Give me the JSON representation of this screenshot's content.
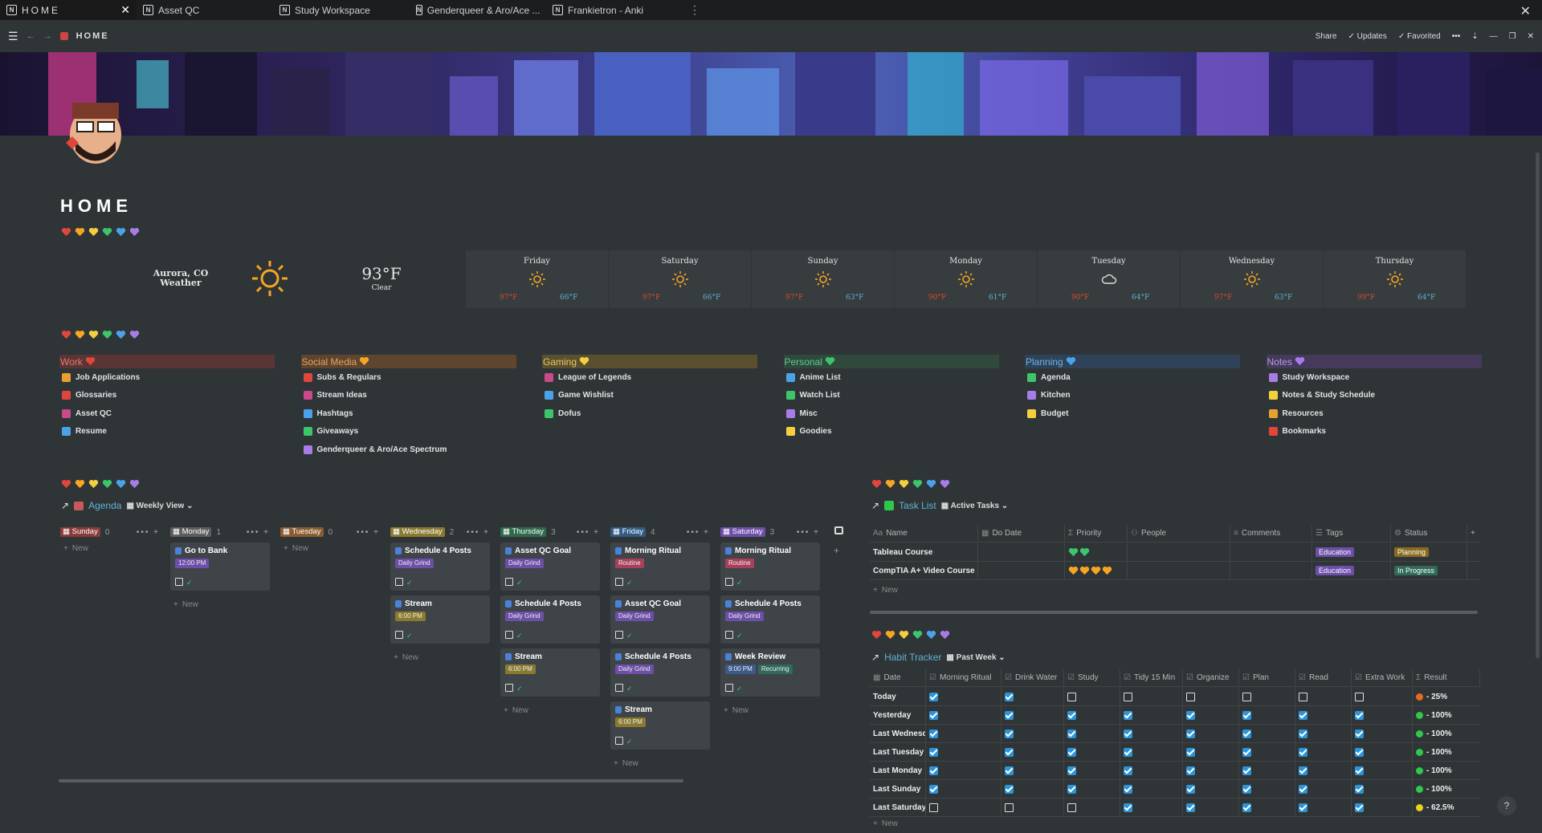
{
  "tabs": [
    {
      "label": "HOME",
      "active": true
    },
    {
      "label": "Asset QC"
    },
    {
      "label": "Study Workspace"
    },
    {
      "label": "Genderqueer & Aro/Ace ..."
    },
    {
      "label": "Frankietron - Anki"
    }
  ],
  "topbar": {
    "breadcrumb": "HOME",
    "share": "Share",
    "updates": "Updates",
    "favorited": "Favorited"
  },
  "page_title": "HOME",
  "weather": {
    "location": "Aurora, CO",
    "sub": "Weather",
    "temp": "93°F",
    "condition": "Clear",
    "days": [
      {
        "name": "Friday",
        "hi": "97°F",
        "lo": "66°F",
        "icon": "sun"
      },
      {
        "name": "Saturday",
        "hi": "97°F",
        "lo": "66°F",
        "icon": "sun"
      },
      {
        "name": "Sunday",
        "hi": "97°F",
        "lo": "63°F",
        "icon": "sun"
      },
      {
        "name": "Monday",
        "hi": "90°F",
        "lo": "61°F",
        "icon": "sun"
      },
      {
        "name": "Tuesday",
        "hi": "90°F",
        "lo": "64°F",
        "icon": "cloud"
      },
      {
        "name": "Wednesday",
        "hi": "97°F",
        "lo": "63°F",
        "icon": "sun"
      },
      {
        "name": "Thursday",
        "hi": "99°F",
        "lo": "64°F",
        "icon": "sun"
      }
    ]
  },
  "categories": [
    {
      "name": "Work",
      "heart": "#e0463c",
      "bg": "#5a3535",
      "fg": "#e8786c",
      "items": [
        "Job Applications",
        "Glossaries",
        "Asset QC",
        "Resume"
      ]
    },
    {
      "name": "Social Media",
      "heart": "#f5a623",
      "bg": "#5d4530",
      "fg": "#e9a25a",
      "items": [
        "Subs & Regulars",
        "Stream Ideas",
        "Hashtags",
        "Giveaways",
        "Genderqueer & Aro/Ace Spectrum"
      ]
    },
    {
      "name": "Gaming",
      "heart": "#f4d03f",
      "bg": "#5a5030",
      "fg": "#e5c95c",
      "items": [
        "League of Legends",
        "Game Wishlist",
        "Dofus"
      ]
    },
    {
      "name": "Personal",
      "heart": "#3cc56a",
      "bg": "#2f4a3c",
      "fg": "#5fc98a",
      "items": [
        "Anime List",
        "Watch List",
        "Misc",
        "Goodies"
      ]
    },
    {
      "name": "Planning",
      "heart": "#4aa3e8",
      "bg": "#2f4358",
      "fg": "#6ab2e6",
      "items": [
        "Agenda",
        "Kitchen",
        "Budget"
      ]
    },
    {
      "name": "Notes",
      "heart": "#a77ce6",
      "bg": "#453a5c",
      "fg": "#b59ae0",
      "items": [
        "Study Workspace",
        "Notes & Study Schedule",
        "Resources",
        "Bookmarks"
      ]
    }
  ],
  "agenda": {
    "title": "Agenda",
    "view": "Weekly View",
    "new_label": "New",
    "columns": [
      {
        "day": "Sunday",
        "count": "0",
        "color": "#8a3b3b",
        "cards": []
      },
      {
        "day": "Monday",
        "count": "1",
        "color": "#5d5d5d",
        "cards": [
          {
            "title": "Go to Bank",
            "label": "12:00 PM",
            "label_color": "#6d4ea8"
          }
        ]
      },
      {
        "day": "Tuesday",
        "count": "0",
        "color": "#8a5c30",
        "cards": []
      },
      {
        "day": "Wednesday",
        "count": "2",
        "color": "#8a7a30",
        "cards": [
          {
            "title": "Schedule 4 Posts",
            "label": "Daily Grind",
            "label_color": "#6d4ea8"
          },
          {
            "title": "Stream",
            "label": "6:00 PM",
            "label_color": "#8a7a30"
          }
        ]
      },
      {
        "day": "Thursday",
        "count": "3",
        "color": "#2f6a4a",
        "cards": [
          {
            "title": "Asset QC Goal",
            "label": "Daily Grind",
            "label_color": "#6d4ea8"
          },
          {
            "title": "Schedule 4 Posts",
            "label": "Daily Grind",
            "label_color": "#6d4ea8"
          },
          {
            "title": "Stream",
            "label": "6:00 PM",
            "label_color": "#8a7a30"
          }
        ]
      },
      {
        "day": "Friday",
        "count": "4",
        "color": "#2f5a86",
        "cards": [
          {
            "title": "Morning Ritual",
            "label": "Routine",
            "label_color": "#a8405a"
          },
          {
            "title": "Asset QC Goal",
            "label": "Daily Grind",
            "label_color": "#6d4ea8"
          },
          {
            "title": "Schedule 4 Posts",
            "label": "Daily Grind",
            "label_color": "#6d4ea8"
          },
          {
            "title": "Stream",
            "label": "6:00 PM",
            "label_color": "#8a7a30"
          }
        ]
      },
      {
        "day": "Saturday",
        "count": "3",
        "color": "#6d4ea8",
        "cards": [
          {
            "title": "Morning Ritual",
            "label": "Routine",
            "label_color": "#a8405a"
          },
          {
            "title": "Schedule 4 Posts",
            "label": "Daily Grind",
            "label_color": "#6d4ea8"
          },
          {
            "title": "Week Review",
            "label": "9:00 PM",
            "label_color": "#3c5a8a",
            "label2": "Recurring",
            "label2_color": "#2f6a5a"
          }
        ]
      }
    ]
  },
  "tasks": {
    "title": "Task List",
    "view": "Active Tasks",
    "new_label": "New",
    "headers": [
      "Name",
      "Do Date",
      "Priority",
      "People",
      "Comments",
      "Tags",
      "Status"
    ],
    "rows": [
      {
        "name": "Tableau Course",
        "priority_color": "#3cc56a",
        "priority_count": 2,
        "tag": "Education",
        "status": "Planning",
        "status_color": "#8a6a20"
      },
      {
        "name": "CompTIA A+ Video Course",
        "priority_color": "#f5a623",
        "priority_count": 4,
        "tag": "Education",
        "status": "In Progress",
        "status_color": "#2f6a5a"
      }
    ]
  },
  "habits": {
    "title": "Habit Tracker",
    "view": "Past Week",
    "new_label": "New",
    "headers": [
      "Date",
      "Morning Ritual",
      "Drink Water",
      "Study",
      "Tidy 15 Min",
      "Organize",
      "Plan",
      "Read",
      "Extra Work",
      "Result"
    ],
    "rows": [
      {
        "date": "Today",
        "checks": [
          1,
          1,
          0,
          0,
          0,
          0,
          0,
          0
        ],
        "result": "- 25%",
        "dot": "#e86a1c"
      },
      {
        "date": "Yesterday",
        "checks": [
          1,
          1,
          1,
          1,
          1,
          1,
          1,
          1
        ],
        "result": "- 100%",
        "dot": "#2ec94a"
      },
      {
        "date": "Last Wednesda",
        "checks": [
          1,
          1,
          1,
          1,
          1,
          1,
          1,
          1
        ],
        "result": "- 100%",
        "dot": "#2ec94a"
      },
      {
        "date": "Last Tuesday",
        "checks": [
          1,
          1,
          1,
          1,
          1,
          1,
          1,
          1
        ],
        "result": "- 100%",
        "dot": "#2ec94a"
      },
      {
        "date": "Last Monday",
        "checks": [
          1,
          1,
          1,
          1,
          1,
          1,
          1,
          1
        ],
        "result": "- 100%",
        "dot": "#2ec94a"
      },
      {
        "date": "Last Sunday",
        "checks": [
          1,
          1,
          1,
          1,
          1,
          1,
          1,
          1
        ],
        "result": "- 100%",
        "dot": "#2ec94a"
      },
      {
        "date": "Last Saturday",
        "checks": [
          0,
          0,
          0,
          1,
          1,
          1,
          1,
          1
        ],
        "result": "- 62.5%",
        "dot": "#e8d21c"
      }
    ]
  },
  "heart_colors": [
    "#e0463c",
    "#f5a623",
    "#f4d03f",
    "#3cc56a",
    "#4aa3e8",
    "#a77ce6"
  ],
  "help": "?"
}
